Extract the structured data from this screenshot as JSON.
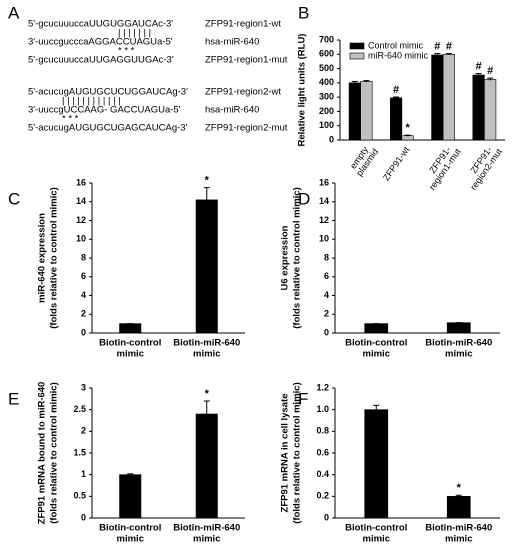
{
  "panel_a": {
    "panel": "A",
    "groups": [
      {
        "lines": [
          {
            "seq": "5'-gcucuuuccaUUGUGGAUCAc-3'",
            "name": "ZFP91-region1-wt"
          },
          {
            "seq": "| | | | | | |"
          },
          {
            "seq": "3'-uuccgucccaAGGACCUAGUa-5'",
            "name": "hsa-miR-640"
          },
          {
            "seq": "* *  *"
          },
          {
            "seq": "5'-gcucuuuccaUUGAGGUUGAc-3'",
            "name": "ZFP91-region1-mut"
          }
        ]
      },
      {
        "lines": [
          {
            "seq": "5'-acucugAUGUGCUCUGGAUCAg-3'",
            "name": "ZFP91-region2-wt"
          },
          {
            "seq": "| | | | |   | | | | | | |"
          },
          {
            "seq": "3'-uuccgUCCAAG- GACCUAGUa-5'",
            "name": "hsa-miR-640"
          },
          {
            "seq": "* * *"
          },
          {
            "seq": "5'-acucugAUGUGCUGAGCAUCAg-3'",
            "name": "ZFP91-region2-mut"
          }
        ]
      }
    ]
  },
  "chart_data": [
    {
      "type": "bar",
      "panel": "B",
      "ylabel": "Relative light units (RLU)",
      "categories": [
        [
          "empty",
          "plasmid"
        ],
        [
          "ZFP91-wt"
        ],
        [
          "ZFP91-",
          "region1-mut"
        ],
        [
          "ZFP91-",
          "region2-mut"
        ]
      ],
      "series": [
        {
          "name": "Control mimic",
          "color": "#000000",
          "values": [
            400,
            295,
            595,
            455
          ],
          "errors": [
            10,
            6,
            10,
            10
          ]
        },
        {
          "name": "miR-640 mimic",
          "color": "#bfbfbf",
          "values": [
            410,
            30,
            600,
            425
          ],
          "errors": [
            6,
            4,
            5,
            8
          ]
        }
      ],
      "ylim": [
        0,
        700
      ],
      "yticks": [
        0,
        100,
        200,
        300,
        400,
        500,
        600,
        700
      ],
      "legend": "upper left",
      "annotations": [
        {
          "text": "#",
          "series": 0,
          "index": 1
        },
        {
          "text": "*",
          "series": 1,
          "index": 1
        },
        {
          "text": "#",
          "series": 0,
          "index": 2
        },
        {
          "text": "#",
          "series": 1,
          "index": 2
        },
        {
          "text": "#",
          "series": 0,
          "index": 3
        },
        {
          "text": "#",
          "series": 1,
          "index": 3
        }
      ]
    },
    {
      "type": "bar",
      "panel": "C",
      "ylabel": [
        "miR-640 expression",
        "(folds relative to control mimic)"
      ],
      "categories": [
        [
          "Biotin-control",
          "mimic"
        ],
        [
          "Biotin-miR-640",
          "mimic"
        ]
      ],
      "values": [
        1,
        14.2
      ],
      "errors": [
        0,
        1.3
      ],
      "color": "#000000",
      "ylim": [
        0,
        16
      ],
      "yticks": [
        0,
        2,
        4,
        6,
        8,
        10,
        12,
        14,
        16
      ],
      "annotations": [
        {
          "text": "*",
          "index": 1
        }
      ]
    },
    {
      "type": "bar",
      "panel": "D",
      "ylabel": [
        "U6 expression",
        "(folds relative to control mimic)"
      ],
      "categories": [
        [
          "Biotin-control",
          "mimic"
        ],
        [
          "Biotin-miR-640",
          "mimic"
        ]
      ],
      "values": [
        1,
        1.1
      ],
      "errors": [
        0,
        0
      ],
      "color": "#000000",
      "ylim": [
        0,
        16
      ],
      "yticks": [
        0,
        2,
        4,
        6,
        8,
        10,
        12,
        14,
        16
      ]
    },
    {
      "type": "bar",
      "panel": "E",
      "ylabel": [
        "ZFP91 mRNA bound to miR-640",
        "(folds relative to control mimic)"
      ],
      "categories": [
        [
          "Biotin-control",
          "mimic"
        ],
        [
          "Biotin-miR-640",
          "mimic"
        ]
      ],
      "values": [
        1,
        2.4
      ],
      "errors": [
        0.02,
        0.3
      ],
      "color": "#000000",
      "ylim": [
        0,
        3
      ],
      "yticks": [
        0,
        0.5,
        1,
        1.5,
        2,
        2.5,
        3
      ],
      "annotations": [
        {
          "text": "*",
          "index": 1
        }
      ]
    },
    {
      "type": "bar",
      "panel": "F",
      "ylabel": [
        "ZFP91 mRNA in cell lysate",
        "(folds relative to control mimic)"
      ],
      "categories": [
        [
          "Biotin-control",
          "mimic"
        ],
        [
          "Biotin-miR-640",
          "mimic"
        ]
      ],
      "values": [
        1,
        0.2
      ],
      "errors": [
        0.04,
        0.01
      ],
      "color": "#000000",
      "ylim": [
        0,
        1.2
      ],
      "yticks": [
        0,
        0.2,
        0.4,
        0.6,
        0.8,
        {
          "value": 1,
          "label": "1.0"
        },
        {
          "value": 1.2,
          "label": "1.2"
        }
      ],
      "annotations": [
        {
          "text": "*",
          "index": 1
        }
      ]
    }
  ]
}
